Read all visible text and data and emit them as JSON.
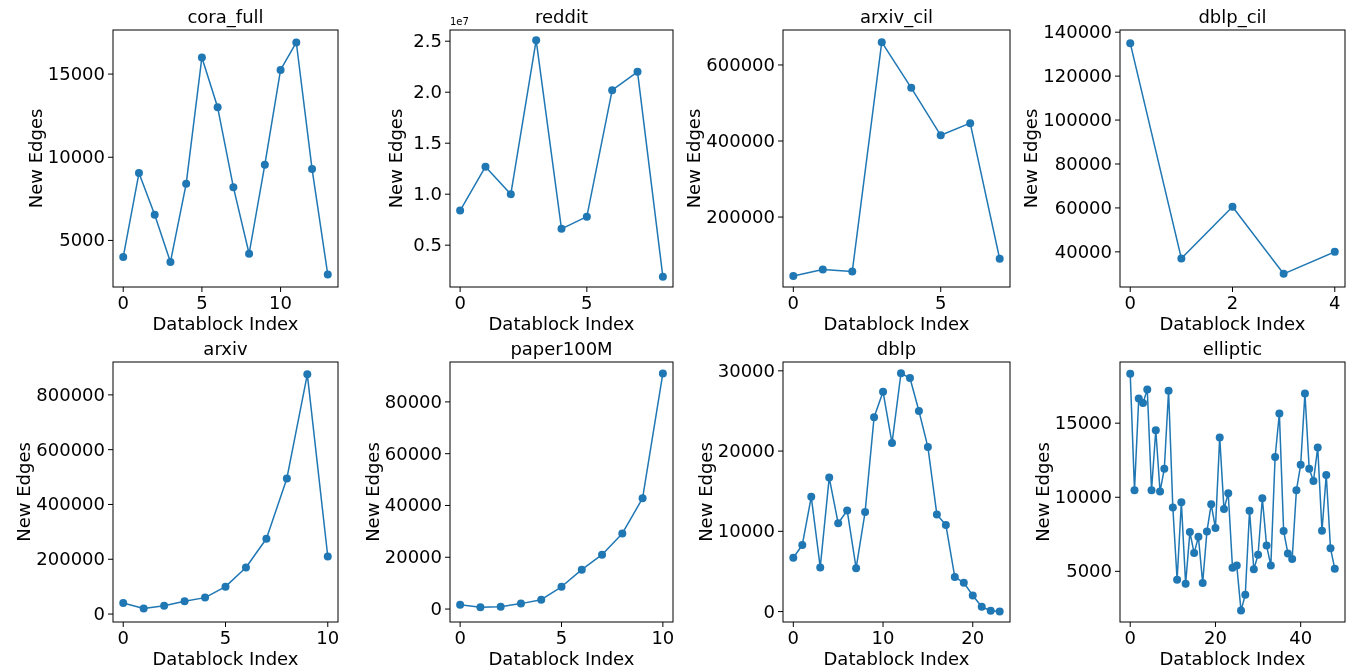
{
  "chart_data": [
    {
      "type": "line",
      "title": "cora_full",
      "xlabel": "Datablock Index",
      "ylabel": "New Edges",
      "color": "#1f77b4",
      "marker": "circle",
      "grid": false,
      "x": [
        0,
        1,
        2,
        3,
        4,
        5,
        6,
        7,
        8,
        9,
        10,
        11,
        12,
        13
      ],
      "values": [
        4000,
        9050,
        6550,
        3700,
        8400,
        16000,
        13000,
        8200,
        4200,
        9550,
        15250,
        16900,
        9300,
        2950
      ],
      "xlim": [
        -0.65,
        13.65
      ],
      "xticks": [
        0,
        5,
        10
      ],
      "ylim": [
        2200,
        17650
      ],
      "yticks": [
        5000,
        10000,
        15000
      ]
    },
    {
      "type": "line",
      "title": "reddit",
      "xlabel": "Datablock Index",
      "ylabel": "New Edges",
      "color": "#1f77b4",
      "marker": "circle",
      "grid": false,
      "annotations": [
        "1e7"
      ],
      "x": [
        0,
        1,
        2,
        3,
        4,
        5,
        6,
        7,
        8
      ],
      "values": [
        0.84,
        1.27,
        1.0,
        2.51,
        0.66,
        0.78,
        2.02,
        2.2,
        0.19
      ],
      "xlim": [
        -0.4,
        8.4
      ],
      "xticks": [
        0,
        5
      ],
      "ylim": [
        0.09,
        2.61
      ],
      "yticks": [
        {
          "value": 0.5,
          "label": "0.5"
        },
        {
          "value": 1,
          "label": "1.0"
        },
        {
          "value": 1.5,
          "label": "1.5"
        },
        {
          "value": 2,
          "label": "2.0"
        },
        {
          "value": 2.5,
          "label": "2.5"
        }
      ]
    },
    {
      "type": "line",
      "title": "arxiv_cil",
      "xlabel": "Datablock Index",
      "ylabel": "New Edges",
      "color": "#1f77b4",
      "marker": "circle",
      "grid": false,
      "x": [
        0,
        1,
        2,
        3,
        4,
        5,
        6,
        7
      ],
      "values": [
        45000,
        62000,
        57000,
        660000,
        540000,
        415000,
        447000,
        90000
      ],
      "xlim": [
        -0.35,
        7.35
      ],
      "xticks": [
        0,
        5
      ],
      "ylim": [
        16000,
        692000
      ],
      "yticks": [
        200000,
        400000,
        600000
      ]
    },
    {
      "type": "line",
      "title": "dblp_cil",
      "xlabel": "Datablock Index",
      "ylabel": "New Edges",
      "color": "#1f77b4",
      "marker": "circle",
      "grid": false,
      "x": [
        0,
        1,
        2,
        3,
        4
      ],
      "values": [
        135000,
        37000,
        60500,
        30000,
        40000
      ],
      "xlim": [
        -0.2,
        4.2
      ],
      "xticks": [
        0,
        2,
        4
      ],
      "ylim": [
        24000,
        141000
      ],
      "yticks": [
        40000,
        60000,
        80000,
        100000,
        120000,
        140000
      ]
    },
    {
      "type": "line",
      "title": "arxiv",
      "xlabel": "Datablock Index",
      "ylabel": "New Edges",
      "color": "#1f77b4",
      "marker": "circle",
      "grid": false,
      "x": [
        0,
        1,
        2,
        3,
        4,
        5,
        6,
        7,
        8,
        9,
        10
      ],
      "values": [
        40000,
        20000,
        30000,
        47000,
        60000,
        100000,
        170000,
        275000,
        495000,
        875000,
        210000
      ],
      "xlim": [
        -0.5,
        10.5
      ],
      "xticks": [
        0,
        5,
        10
      ],
      "ylim": [
        -29000,
        920000
      ],
      "yticks": [
        0,
        200000,
        400000,
        600000,
        800000
      ]
    },
    {
      "type": "line",
      "title": "paper100M",
      "xlabel": "Datablock Index",
      "ylabel": "New Edges",
      "color": "#1f77b4",
      "marker": "circle",
      "grid": false,
      "x": [
        0,
        1,
        2,
        3,
        4,
        5,
        6,
        7,
        8,
        9,
        10
      ],
      "values": [
        1700,
        700,
        900,
        2100,
        3600,
        8600,
        15200,
        21000,
        29200,
        42800,
        91000
      ],
      "xlim": [
        -0.5,
        10.5
      ],
      "xticks": [
        0,
        5,
        10
      ],
      "ylim": [
        -5000,
        95400
      ],
      "yticks": [
        0,
        20000,
        40000,
        60000,
        80000
      ]
    },
    {
      "type": "line",
      "title": "dblp",
      "xlabel": "Datablock Index",
      "ylabel": "New Edges",
      "color": "#1f77b4",
      "marker": "circle",
      "grid": false,
      "x": [
        0,
        1,
        2,
        3,
        4,
        5,
        6,
        7,
        8,
        9,
        10,
        11,
        12,
        13,
        14,
        15,
        16,
        17,
        18,
        19,
        20,
        21,
        22,
        23
      ],
      "values": [
        6700,
        8300,
        14300,
        5500,
        16700,
        11000,
        12600,
        5400,
        12400,
        24200,
        27400,
        21000,
        29700,
        29100,
        25000,
        20500,
        12100,
        10800,
        4300,
        3600,
        2000,
        600,
        100,
        0
      ],
      "xlim": [
        -1.15,
        24.15
      ],
      "xticks": [
        0,
        10,
        20
      ],
      "ylim": [
        -1300,
        31100
      ],
      "yticks": [
        0,
        10000,
        20000,
        30000
      ]
    },
    {
      "type": "line",
      "title": "elliptic",
      "xlabel": "Datablock Index",
      "ylabel": "New Edges",
      "color": "#1f77b4",
      "marker": "circle",
      "grid": false,
      "x": [
        0,
        1,
        2,
        3,
        4,
        5,
        6,
        7,
        8,
        9,
        10,
        11,
        12,
        13,
        14,
        15,
        16,
        17,
        18,
        19,
        20,
        21,
        22,
        23,
        24,
        25,
        26,
        27,
        28,
        29,
        30,
        31,
        32,
        33,
        34,
        35,
        36,
        37,
        38,
        39,
        40,
        41,
        42,
        43,
        44,
        45,
        46,
        47,
        48
      ],
      "values": [
        18330,
        10480,
        16670,
        16370,
        17280,
        10480,
        14520,
        10390,
        11920,
        17190,
        9310,
        4430,
        9660,
        4160,
        7650,
        6230,
        7330,
        4220,
        7690,
        9520,
        7920,
        14040,
        9200,
        10270,
        5250,
        5390,
        2350,
        3420,
        9090,
        5140,
        6120,
        9930,
        6740,
        5390,
        12720,
        15660,
        7720,
        6210,
        5840,
        10480,
        12190,
        17010,
        11920,
        11100,
        13360,
        7740,
        11510,
        6550,
        5180
      ],
      "xlim": [
        -2.4,
        50.4
      ],
      "xticks": [
        0,
        20,
        40
      ],
      "ylim": [
        1580,
        19130
      ],
      "yticks": [
        5000,
        10000,
        15000
      ]
    }
  ]
}
